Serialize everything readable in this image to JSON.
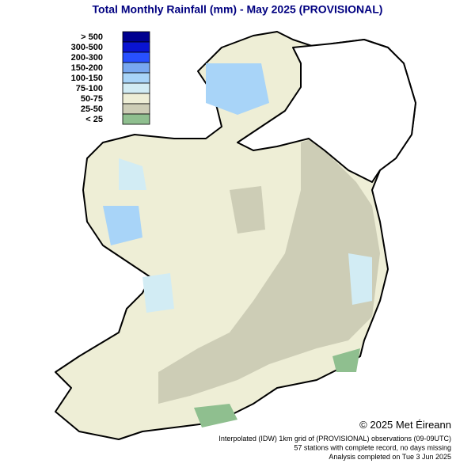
{
  "title": "Total Monthly Rainfall (mm) - May 2025  (PROVISIONAL)",
  "legend": [
    {
      "label": "> 500",
      "color": "#000090"
    },
    {
      "label": "300-500",
      "color": "#0a14d2"
    },
    {
      "label": "200-300",
      "color": "#2850ff"
    },
    {
      "label": "150-200",
      "color": "#78a8f0"
    },
    {
      "label": "100-150",
      "color": "#a8d4f8"
    },
    {
      "label": "75-100",
      "color": "#d2ecf4"
    },
    {
      "label": "50-75",
      "color": "#eeeed6"
    },
    {
      "label": "25-50",
      "color": "#cdcdb6"
    },
    {
      "label": "< 25",
      "color": "#8fbf8f"
    }
  ],
  "footer": {
    "copyright": "© 2025 Met Éireann",
    "notes": [
      "Interpolated (IDW) 1km grid of  (PROVISIONAL) observations (09-09UTC)",
      "57 stations with complete record, no days missing",
      "Analysis completed on Tue 3 Jun 2025"
    ]
  }
}
